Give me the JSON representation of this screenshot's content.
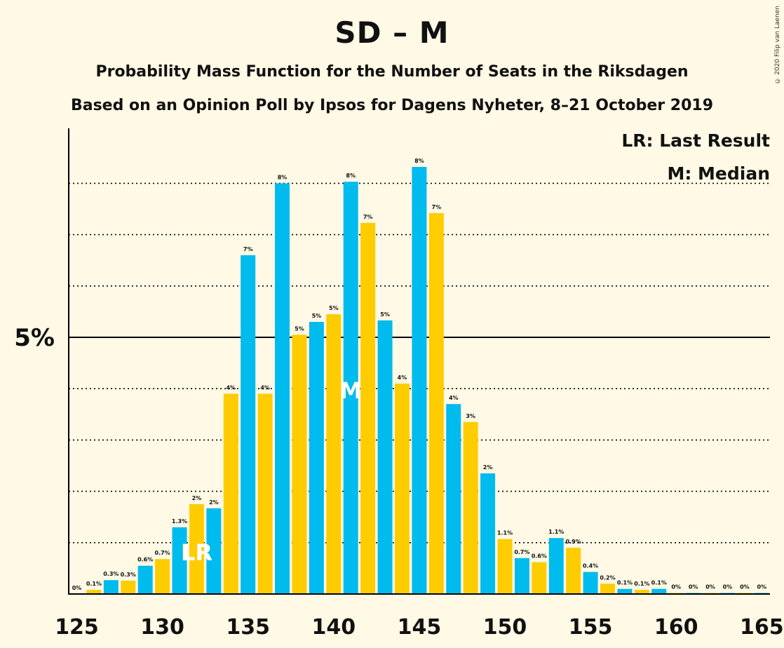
{
  "chart_data": {
    "type": "bar",
    "title": "SD – M",
    "subtitles": [
      "Probability Mass Function for the Number of Seats in the Riksdagen",
      "Based on an Opinion Poll by Ipsos for Dagens Nyheter, 8–21 October 2019"
    ],
    "legend": [
      "LR: Last Result",
      "M: Median"
    ],
    "legend_position": "top-right",
    "copyright": "© 2020 Filip van Laenen",
    "x": [
      125,
      126,
      127,
      128,
      129,
      130,
      131,
      132,
      133,
      134,
      135,
      136,
      137,
      138,
      139,
      140,
      141,
      142,
      143,
      144,
      145,
      146,
      147,
      148,
      149,
      150,
      151,
      152,
      153,
      154,
      155,
      156,
      157,
      158,
      159,
      160,
      161,
      162,
      163,
      164,
      165
    ],
    "values": [
      0,
      0.08,
      0.27,
      0.26,
      0.55,
      0.68,
      1.3,
      1.75,
      1.67,
      3.9,
      6.6,
      3.9,
      8.0,
      5.05,
      5.3,
      5.45,
      8.03,
      7.23,
      5.33,
      4.1,
      8.32,
      7.42,
      3.7,
      3.35,
      2.35,
      1.07,
      0.7,
      0.62,
      1.09,
      0.9,
      0.43,
      0.2,
      0.1,
      0.08,
      0.1,
      0.02,
      0.02,
      0.02,
      0.02,
      0.02,
      0.02
    ],
    "labels": [
      "0%",
      "0.1%",
      "0.3%",
      "0.3%",
      "0.6%",
      "0.7%",
      "1.3%",
      "2%",
      "2%",
      "4%",
      "7%",
      "4%",
      "8%",
      "5%",
      "5%",
      "5%",
      "8%",
      "7%",
      "5%",
      "4%",
      "8%",
      "7%",
      "4%",
      "3%",
      "2%",
      "1.1%",
      "0.7%",
      "0.6%",
      "1.1%",
      "0.9%",
      "0.4%",
      "0.2%",
      "0.1%",
      "0.1%",
      "0.1%",
      "0%",
      "0%",
      "0%",
      "0%",
      "0%",
      "0%"
    ],
    "xticks": [
      125,
      130,
      135,
      140,
      145,
      150,
      155,
      160,
      165
    ],
    "yticks": [
      {
        "value": 5,
        "label": "5%"
      }
    ],
    "ylim": [
      0,
      9
    ],
    "grid_values": [
      1,
      2,
      3,
      4,
      5,
      6,
      7,
      8
    ],
    "last_result": 132,
    "median": 141,
    "marker_labels": {
      "last_result": "LR",
      "median": "M"
    },
    "colors": {
      "odd_seats": "#00BBEE",
      "even_seats": "#FFCC00",
      "background": "#FFF9E5",
      "axis": "#000000",
      "grid": "#000000"
    }
  }
}
